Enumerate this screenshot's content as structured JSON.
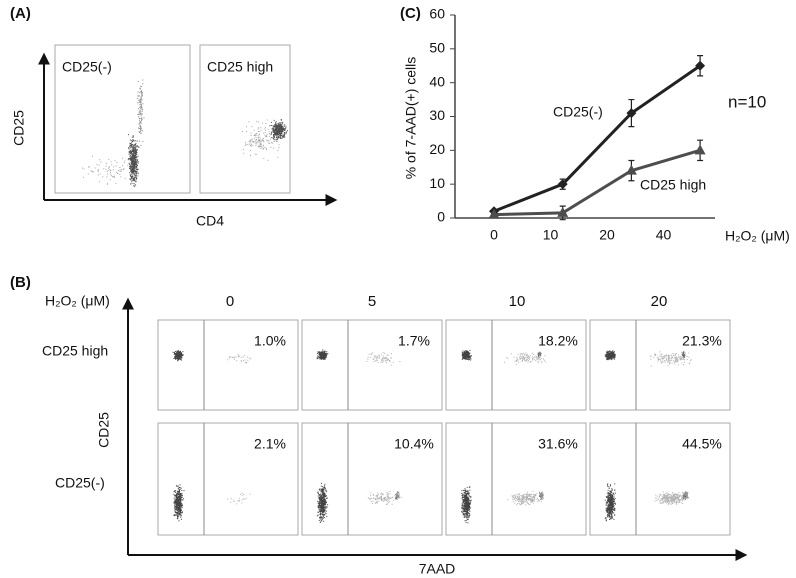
{
  "panel_a": {
    "label": "(A)",
    "plots": [
      "CD25(-)",
      "CD25 high"
    ],
    "y_axis": "CD25",
    "x_axis": "CD4"
  },
  "panel_b": {
    "label": "(B)",
    "header": "H₂O₂ (μM)",
    "columns": [
      "0",
      "5",
      "10",
      "20"
    ],
    "rows": [
      {
        "name": "CD25 high",
        "percents": [
          "1.0%",
          "1.7%",
          "18.2%",
          "21.3%"
        ]
      },
      {
        "name": "CD25(-)",
        "percents": [
          "2.1%",
          "10.4%",
          "31.6%",
          "44.5%"
        ]
      }
    ],
    "y_axis": "CD25",
    "x_axis": "7AAD"
  },
  "chart_data": {
    "type": "line",
    "panel_label": "(C)",
    "y_label": "% of  7-AAD(+) cells",
    "x_label": "H₂O₂ (μM)",
    "annotation": "n=10",
    "categories": [
      "0",
      "10",
      "20",
      "40"
    ],
    "ylim": [
      0,
      60
    ],
    "yticks": [
      0,
      10,
      20,
      30,
      40,
      50,
      60
    ],
    "series": [
      {
        "name": "CD25(-)",
        "color": "#222222",
        "marker": "diamond",
        "values": [
          2,
          10,
          31,
          45
        ],
        "errors": [
          0.5,
          1.5,
          4,
          3
        ]
      },
      {
        "name": "CD25 high",
        "color": "#4d4d4d",
        "marker": "triangle",
        "values": [
          1,
          1.5,
          14,
          20
        ],
        "errors": [
          0.5,
          2,
          3,
          3
        ]
      }
    ]
  }
}
